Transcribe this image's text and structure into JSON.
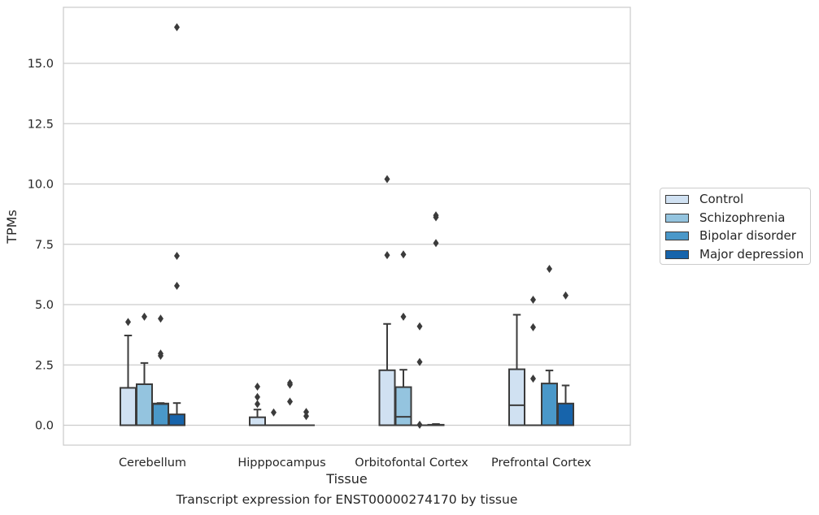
{
  "chart_data": {
    "type": "box",
    "title": "",
    "caption": "Transcript expression for ENST00000274170 by tissue",
    "xlabel": "Tissue",
    "ylabel": "TPMs",
    "ylim": [
      -0.8,
      17.3
    ],
    "yticks": [
      0.0,
      2.5,
      5.0,
      7.5,
      10.0,
      12.5,
      15.0
    ],
    "ytick_labels": [
      "0.0",
      "2.5",
      "5.0",
      "7.5",
      "10.0",
      "12.5",
      "15.0"
    ],
    "grid": "horizontal",
    "legend_position": "right",
    "categories": [
      "Cerebellum",
      "Hipppocampus",
      "Orbitofontal Cortex",
      "Prefrontal Cortex"
    ],
    "series": [
      {
        "name": "Control",
        "color": "#d0e1f2",
        "boxes": [
          {
            "q1": 0,
            "median": 0,
            "q3": 1.55,
            "whisker_low": 0,
            "whisker_high": 3.72,
            "outliers": [
              4.28
            ]
          },
          {
            "q1": 0,
            "median": 0,
            "q3": 0.33,
            "whisker_low": 0,
            "whisker_high": 0.65,
            "outliers": [
              0.88,
              1.17,
              1.6
            ]
          },
          {
            "q1": 0,
            "median": 0,
            "q3": 2.28,
            "whisker_low": 0,
            "whisker_high": 4.2,
            "outliers": [
              7.05,
              10.2
            ]
          },
          {
            "q1": 0,
            "median": 0.83,
            "q3": 2.32,
            "whisker_low": 0,
            "whisker_high": 4.58,
            "outliers": []
          }
        ]
      },
      {
        "name": "Schizophrenia",
        "color": "#94c4df",
        "boxes": [
          {
            "q1": 0,
            "median": 0,
            "q3": 1.7,
            "whisker_low": 0,
            "whisker_high": 2.58,
            "outliers": [
              4.5
            ]
          },
          {
            "q1": 0,
            "median": 0,
            "q3": 0,
            "whisker_low": 0,
            "whisker_high": 0,
            "outliers": [
              0.53
            ]
          },
          {
            "q1": 0,
            "median": 0.35,
            "q3": 1.58,
            "whisker_low": 0,
            "whisker_high": 2.3,
            "outliers": [
              4.5,
              7.08
            ]
          },
          {
            "q1": 0,
            "median": 0,
            "q3": 0,
            "whisker_low": 0,
            "whisker_high": 0,
            "outliers": [
              1.93,
              4.06,
              5.2
            ]
          }
        ]
      },
      {
        "name": "Bipolar disorder",
        "color": "#4a98c9",
        "boxes": [
          {
            "q1": 0,
            "median": 0.88,
            "q3": 0.9,
            "whisker_low": 0,
            "whisker_high": 0.92,
            "outliers": [
              2.88,
              2.97,
              4.42
            ]
          },
          {
            "q1": 0,
            "median": 0,
            "q3": 0,
            "whisker_low": 0,
            "whisker_high": 0,
            "outliers": [
              0.98,
              1.68,
              1.75
            ]
          },
          {
            "q1": 0,
            "median": 0,
            "q3": 0,
            "whisker_low": 0,
            "whisker_high": 0,
            "outliers": [
              0.02,
              2.62,
              4.1
            ]
          },
          {
            "q1": 0,
            "median": 0,
            "q3": 1.73,
            "whisker_low": 0,
            "whisker_high": 2.27,
            "outliers": [
              6.48
            ]
          }
        ]
      },
      {
        "name": "Major depression",
        "color": "#1764ab",
        "boxes": [
          {
            "q1": 0,
            "median": 0,
            "q3": 0.45,
            "whisker_low": 0,
            "whisker_high": 0.92,
            "outliers": [
              5.78,
              7.02,
              16.5
            ]
          },
          {
            "q1": 0,
            "median": 0,
            "q3": 0,
            "whisker_low": 0,
            "whisker_high": 0,
            "outliers": [
              0.38,
              0.55
            ]
          },
          {
            "q1": 0,
            "median": 0,
            "q3": 0.02,
            "whisker_low": 0,
            "whisker_high": 0.05,
            "outliers": [
              7.55,
              8.62,
              8.7
            ]
          },
          {
            "q1": 0,
            "median": 0,
            "q3": 0.9,
            "whisker_low": 0,
            "whisker_high": 1.65,
            "outliers": [
              5.38
            ]
          }
        ]
      }
    ]
  }
}
